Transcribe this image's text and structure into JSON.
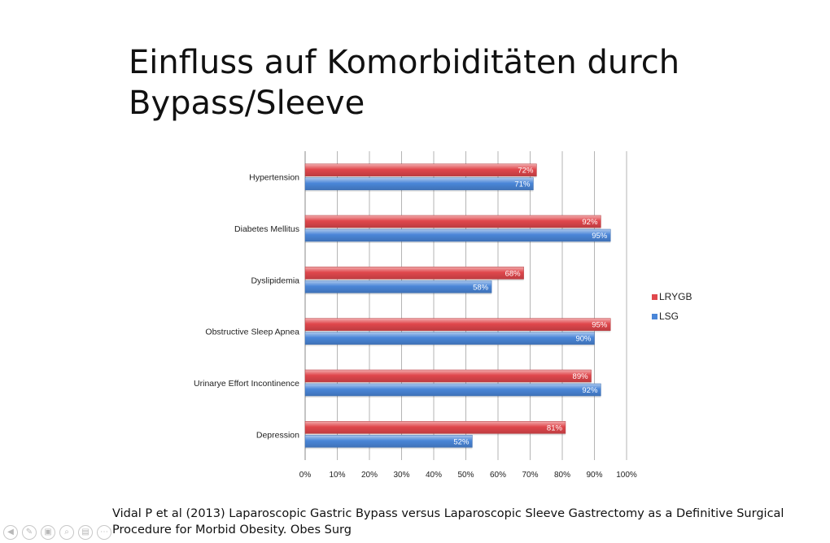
{
  "slide": {
    "title_line1": "Einfluss auf Komorbiditäten durch",
    "title_line2": "Bypass/Sleeve",
    "citation_line1": "Vidal P et al (2013) Laparoscopic Gastric Bypass versus Laparoscopic Sleeve Gastrectomy as a Definitive Surgical",
    "citation_line2": "Procedure for Morbid Obesity. Obes Surg"
  },
  "controls": [
    {
      "name": "prev-slide-icon",
      "glyph": "◀"
    },
    {
      "name": "pen-tool-icon",
      "glyph": "✎"
    },
    {
      "name": "slides-overview-icon",
      "glyph": "▣"
    },
    {
      "name": "zoom-icon",
      "glyph": "⌕"
    },
    {
      "name": "subtitles-icon",
      "glyph": "▤"
    },
    {
      "name": "more-options-icon",
      "glyph": "⋯"
    }
  ],
  "chart_data": {
    "type": "bar",
    "orientation": "horizontal",
    "categories": [
      "Hypertension",
      "Diabetes Mellitus",
      "Dyslipidemia",
      "Obstructive Sleep Apnea",
      "Urinarye Effort Incontinence",
      "Depression"
    ],
    "series": [
      {
        "name": "LRYGB",
        "color": "#e0474c",
        "values": [
          72,
          92,
          68,
          95,
          89,
          81
        ],
        "labels": [
          "72%",
          "92%",
          "68%",
          "95%",
          "89%",
          "81%"
        ]
      },
      {
        "name": "LSG",
        "color": "#4a86d8",
        "values": [
          71,
          95,
          58,
          90,
          92,
          52
        ],
        "labels": [
          "71%",
          "95%",
          "58%",
          "90%",
          "92%",
          "52%"
        ]
      }
    ],
    "xlim": [
      0,
      100
    ],
    "xticks": [
      "0%",
      "10%",
      "20%",
      "30%",
      "40%",
      "50%",
      "60%",
      "70%",
      "80%",
      "90%",
      "100%"
    ],
    "grid": true,
    "legend": "right"
  }
}
